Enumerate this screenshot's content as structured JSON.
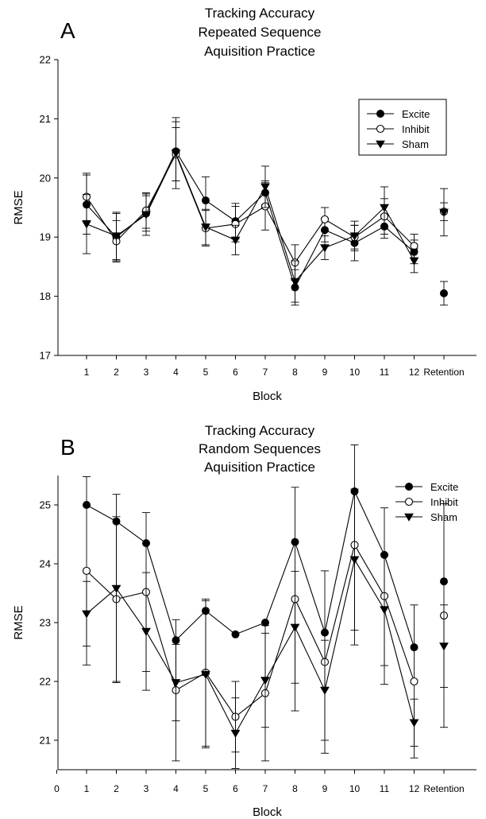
{
  "chart_data": [
    {
      "type": "line",
      "panel_letter": "A",
      "title_lines": [
        "Tracking Accuracy",
        "Repeated Sequence",
        "Aquisition Practice"
      ],
      "xlabel": "Block",
      "ylabel": "RMSE",
      "ylim": [
        17,
        22
      ],
      "yticks": [
        17,
        18,
        19,
        20,
        21,
        22
      ],
      "categories": [
        "1",
        "2",
        "3",
        "4",
        "5",
        "6",
        "7",
        "8",
        "9",
        "10",
        "11",
        "12",
        "Retention"
      ],
      "legend": "top-right",
      "series": [
        {
          "name": "Excite",
          "marker": "filled-circle",
          "values": [
            19.55,
            19.0,
            19.4,
            20.45,
            19.62,
            19.27,
            19.75,
            18.15,
            19.12,
            18.9,
            19.18,
            18.75,
            18.05
          ],
          "errors": [
            0.5,
            0.4,
            0.3,
            0.5,
            0.4,
            0.3,
            0.2,
            0.3,
            0.2,
            0.3,
            0.2,
            0.2,
            0.2
          ]
        },
        {
          "name": "Inhibit",
          "marker": "open-circle",
          "values": [
            19.68,
            18.93,
            19.45,
            20.4,
            19.15,
            19.22,
            19.52,
            18.57,
            19.3,
            19.0,
            19.35,
            18.85,
            19.43
          ],
          "errors": [
            0.4,
            0.35,
            0.3,
            0.45,
            0.3,
            0.3,
            0.4,
            0.3,
            0.2,
            0.2,
            0.3,
            0.2,
            0.15
          ]
        },
        {
          "name": "Sham",
          "marker": "filled-triangle-down",
          "values": [
            19.22,
            19.02,
            19.38,
            20.42,
            19.17,
            18.95,
            19.85,
            18.25,
            18.82,
            19.02,
            19.5,
            18.6,
            19.42
          ],
          "errors": [
            0.5,
            0.4,
            0.35,
            0.6,
            0.3,
            0.25,
            0.35,
            0.35,
            0.2,
            0.25,
            0.35,
            0.2,
            0.4
          ]
        }
      ]
    },
    {
      "type": "line",
      "panel_letter": "B",
      "title_lines": [
        "Tracking Accuracy",
        "Random Sequences",
        "Aquisition Practice"
      ],
      "xlabel": "Block",
      "ylabel": "RMSE",
      "ylim": [
        20.5,
        25.5
      ],
      "yticks": [
        21,
        22,
        23,
        24,
        25
      ],
      "xticks": [
        "0",
        "1",
        "2",
        "3",
        "4",
        "5",
        "6",
        "7",
        "8",
        "9",
        "10",
        "11",
        "12",
        "Retention"
      ],
      "categories": [
        "1",
        "2",
        "3",
        "4",
        "5",
        "6",
        "7",
        "8",
        "9",
        "10",
        "11",
        "12",
        "Retention"
      ],
      "legend": "top-right",
      "series": [
        {
          "name": "Excite",
          "marker": "filled-circle",
          "values": [
            25.0,
            24.72,
            24.35,
            22.7,
            23.2,
            22.8,
            23.0,
            24.37,
            22.83,
            25.23,
            24.15,
            22.58,
            23.7
          ],
          "errors": [
            null,
            null,
            null,
            null,
            null,
            null,
            null,
            null,
            null,
            null,
            null,
            null,
            null
          ]
        },
        {
          "name": "Inhibit",
          "marker": "open-circle",
          "values": [
            23.88,
            23.4,
            23.52,
            21.85,
            22.15,
            21.4,
            21.8,
            23.4,
            22.33,
            24.32,
            23.45,
            22.0,
            23.12
          ],
          "errors": [
            1.6,
            1.4,
            1.35,
            1.2,
            1.25,
            0.6,
            1.15,
            1.9,
            1.55,
            1.7,
            1.5,
            1.3,
            1.9
          ]
        },
        {
          "name": "Sham",
          "marker": "filled-triangle-down",
          "values": [
            23.15,
            23.58,
            22.85,
            21.98,
            22.12,
            21.12,
            22.02,
            22.92,
            21.85,
            24.07,
            23.22,
            21.3,
            22.6
          ],
          "errors": [
            0.55,
            1.6,
            1.0,
            0.65,
            1.25,
            0.6,
            0.8,
            0.95,
            0.85,
            1.2,
            0.95,
            0.4,
            0.7
          ]
        }
      ]
    }
  ]
}
